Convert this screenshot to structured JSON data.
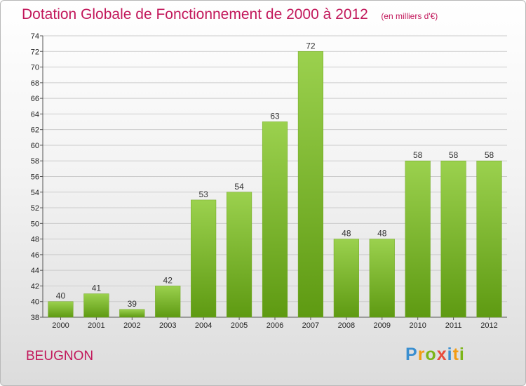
{
  "header": {
    "title": "Dotation Globale de Fonctionnement de 2000 à 2012",
    "subtitle": "(en milliers d'€)"
  },
  "commune": "BEUGNON",
  "logo": {
    "letters": [
      "P",
      "r",
      "o",
      "x",
      "i",
      "t",
      "i"
    ],
    "colors": [
      "#3a8fd0",
      "#f39c12",
      "#7cb518",
      "#e74c3c",
      "#3a8fd0",
      "#f39c12",
      "#7cb518"
    ]
  },
  "colors": {
    "bar_top": "#9bd14e",
    "bar_bottom": "#5e9a12",
    "grid": "#cccccc",
    "title": "#c2185b"
  },
  "chart_data": {
    "type": "bar",
    "title": "Dotation Globale de Fonctionnement de 2000 à 2012",
    "subtitle": "(en milliers d'€)",
    "categories": [
      "2000",
      "2001",
      "2002",
      "2003",
      "2004",
      "2005",
      "2006",
      "2007",
      "2008",
      "2009",
      "2010",
      "2011",
      "2012"
    ],
    "values": [
      40,
      41,
      39,
      42,
      53,
      54,
      63,
      72,
      48,
      48,
      58,
      58,
      58
    ],
    "ylim": [
      38,
      74
    ],
    "yticks": [
      38,
      40,
      42,
      44,
      46,
      48,
      50,
      52,
      54,
      56,
      58,
      60,
      62,
      64,
      66,
      68,
      70,
      72,
      74
    ],
    "grid": true,
    "data_labels": true
  }
}
